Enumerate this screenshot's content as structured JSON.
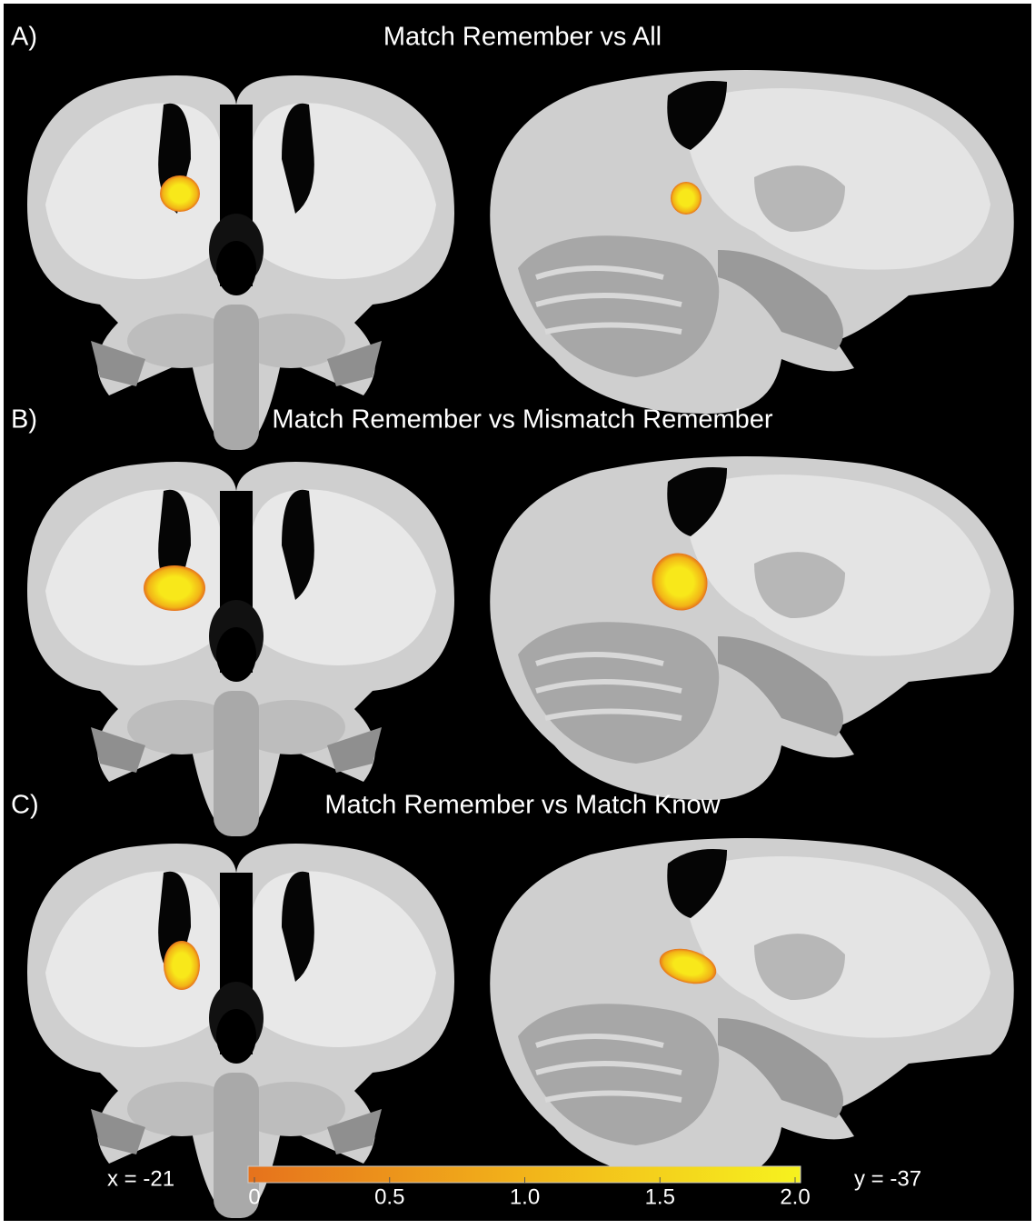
{
  "panels": [
    {
      "label": "A)",
      "title": "Match Remember vs All"
    },
    {
      "label": "B)",
      "title": "Match Remember vs Mismatch Remember"
    },
    {
      "label": "C)",
      "title": "Match Remember vs Match Know"
    }
  ],
  "coordinates": {
    "coronal": "x = -21",
    "sagittal": "y = -37"
  },
  "colorbar": {
    "range": [
      0,
      2
    ],
    "ticks": [
      0,
      {
        "value": 0.5,
        "label": "0.5"
      },
      {
        "value": 1,
        "label": "1.0"
      },
      {
        "value": 1.5,
        "label": "1.5"
      },
      {
        "value": 2,
        "label": "2.0"
      }
    ]
  }
}
